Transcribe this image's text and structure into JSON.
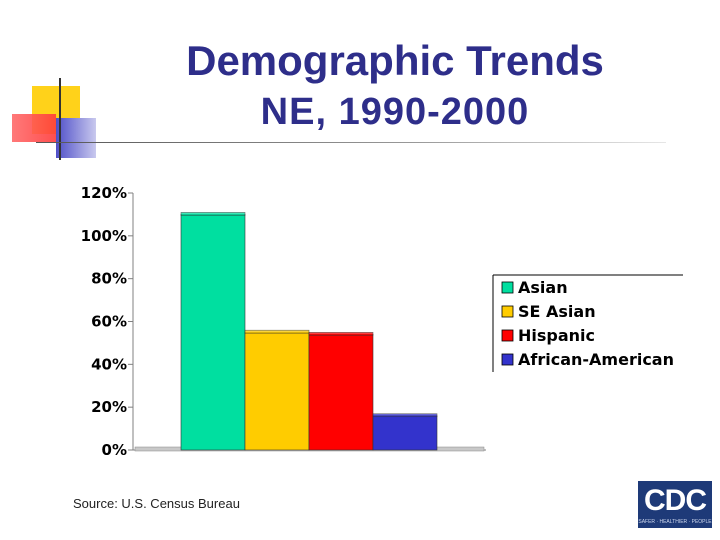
{
  "slide": {
    "title": "Demographic Trends",
    "subtitle": "NE, 1990-2000",
    "source": "Source: U.S. Census Bureau",
    "logo_text": "CDC",
    "logo_tagline": "SAFER · HEALTHIER · PEOPLE"
  },
  "colors": {
    "title": "#2e2e8a",
    "Asian": "#00dfa0",
    "SE Asian": "#ffcc00",
    "Hispanic": "#ff0000",
    "African-American": "#3333cc"
  },
  "chart_data": {
    "type": "bar",
    "title": "",
    "xlabel": "",
    "ylabel": "",
    "categories": [
      "Asian",
      "SE Asian",
      "Hispanic",
      "African-American"
    ],
    "values": [
      110,
      55,
      54,
      16
    ],
    "y_ticks": [
      "0%",
      "20%",
      "40%",
      "60%",
      "80%",
      "100%",
      "120%"
    ],
    "ylim": [
      0,
      120
    ],
    "legend": {
      "placement": "right",
      "entries": [
        "Asian",
        "SE Asian",
        "Hispanic",
        "African-American"
      ]
    },
    "grid": false
  }
}
